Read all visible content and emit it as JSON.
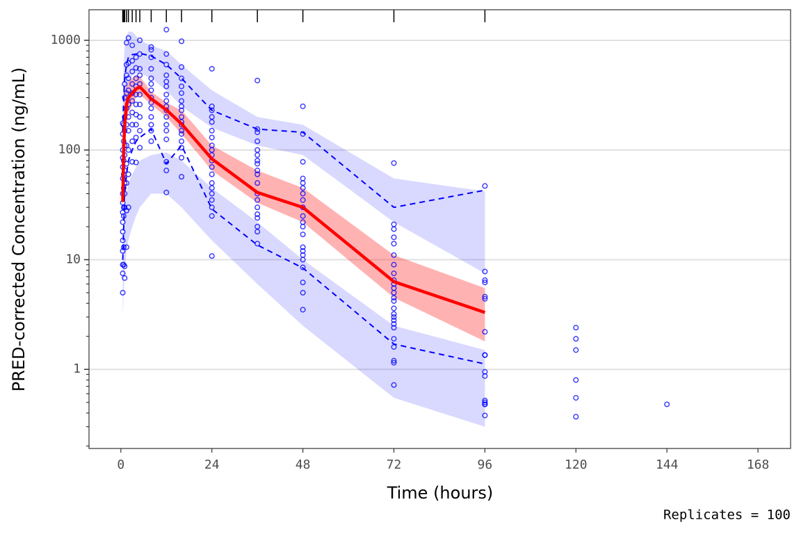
{
  "chart_data": {
    "type": "vpc",
    "x_label": "Time (hours)",
    "y_label": "PRED-corrected Concentration (ng/mL)",
    "caption": "Replicates = 100",
    "xlim": [
      -8.4,
      176.6
    ],
    "xticks": [
      0,
      24,
      48,
      72,
      96,
      120,
      144,
      168
    ],
    "ylim": [
      0.19,
      1900
    ],
    "log_y": true,
    "yticks": [
      1,
      10,
      100,
      1000
    ],
    "y_minor_ticks": [
      0.2,
      0.3,
      0.4,
      0.5,
      0.6,
      0.7,
      0.8,
      0.9,
      2,
      3,
      4,
      5,
      6,
      7,
      8,
      9,
      20,
      30,
      40,
      50,
      60,
      70,
      80,
      90,
      200,
      300,
      400,
      500,
      600,
      700,
      800,
      900
    ],
    "grid": true,
    "bin_times": [
      0.5,
      0.75,
      1,
      1.5,
      2,
      3,
      4,
      5,
      8,
      12,
      16,
      24,
      36,
      48,
      72,
      96
    ],
    "pi_upper": {
      "color": "#0000ff",
      "lower": [
        80,
        150,
        250,
        350,
        420,
        480,
        500,
        500,
        450,
        350,
        250,
        160,
        110,
        90,
        22,
        7.5
      ],
      "upper": [
        300,
        600,
        900,
        1100,
        1200,
        1200,
        1100,
        1000,
        900,
        800,
        600,
        350,
        200,
        170,
        55,
        42
      ]
    },
    "pi_lower": {
      "color": "#0000ff",
      "lower": [
        3,
        5,
        8,
        12,
        15,
        20,
        25,
        30,
        40,
        40,
        30,
        15,
        6,
        2.5,
        0.55,
        0.3
      ],
      "upper": [
        12,
        20,
        30,
        40,
        50,
        60,
        70,
        80,
        90,
        95,
        80,
        45,
        22,
        10,
        2.5,
        1.5
      ]
    },
    "pi_median": {
      "color": "#ff0000",
      "lower": [
        20,
        60,
        120,
        180,
        220,
        260,
        300,
        320,
        260,
        200,
        140,
        65,
        33,
        22,
        4.5,
        1.8
      ],
      "upper": [
        50,
        200,
        320,
        380,
        420,
        450,
        480,
        470,
        340,
        270,
        230,
        110,
        65,
        45,
        11,
        5.5
      ]
    },
    "obs_median": {
      "color": "#ff0000",
      "values": [
        33.6,
        100,
        168,
        260,
        300,
        330,
        360,
        376,
        293,
        232,
        173,
        83,
        41,
        30,
        6.3,
        3.3
      ]
    },
    "obs_lower": {
      "color": "#0000ff",
      "values": [
        10,
        20,
        40,
        60,
        80,
        100,
        120,
        130,
        155,
        75,
        110,
        29,
        13.6,
        8.4,
        1.7,
        1.12
      ]
    },
    "obs_upper": {
      "color": "#0000ff",
      "values": [
        150,
        300,
        450,
        600,
        700,
        740,
        750,
        760,
        720,
        600,
        450,
        230,
        155,
        145,
        30,
        43
      ]
    },
    "observed": {
      "color": "#0000ff",
      "groups": [
        {
          "x": 0.5,
          "values": [
            5,
            7.5,
            9,
            12,
            15,
            18,
            22,
            27,
            33,
            40,
            55,
            70,
            85,
            100,
            140,
            175
          ]
        },
        {
          "x": 0.75,
          "values": [
            9,
            13,
            25,
            30,
            45,
            60,
            80,
            120,
            170
          ]
        },
        {
          "x": 1,
          "values": [
            6.8,
            8.7,
            30,
            40,
            50,
            65,
            90,
            110,
            150,
            200,
            300,
            400
          ]
        },
        {
          "x": 1.5,
          "values": [
            13,
            28,
            50,
            75,
            110,
            170,
            240,
            330,
            480,
            600,
            950
          ]
        },
        {
          "x": 2,
          "values": [
            30,
            60,
            100,
            150,
            200,
            260,
            350,
            450,
            620,
            1050
          ]
        },
        {
          "x": 3,
          "values": [
            78,
            120,
            170,
            220,
            280,
            330,
            400,
            520,
            650,
            900
          ]
        },
        {
          "x": 4,
          "values": [
            77,
            130,
            170,
            210,
            260,
            320,
            380,
            450,
            560,
            700
          ]
        },
        {
          "x": 5,
          "values": [
            105,
            150,
            200,
            260,
            320,
            400,
            480,
            550,
            1000,
            750
          ]
        },
        {
          "x": 8,
          "values": [
            870,
            820,
            700,
            550,
            450,
            400,
            350,
            300,
            270,
            240,
            200,
            170,
            150,
            120
          ]
        },
        {
          "x": 12,
          "values": [
            1250,
            750,
            600,
            480,
            420,
            380,
            320,
            280,
            250,
            230,
            200,
            170,
            150,
            125,
            78,
            65,
            41
          ]
        },
        {
          "x": 16,
          "values": [
            980,
            570,
            450,
            380,
            330,
            280,
            250,
            230,
            200,
            180,
            170,
            150,
            140,
            120,
            105,
            85,
            57
          ]
        },
        {
          "x": 24,
          "values": [
            550,
            250,
            230,
            200,
            180,
            150,
            130,
            110,
            100,
            90,
            80,
            70,
            60,
            50,
            45,
            40,
            35,
            30,
            25,
            10.8
          ]
        },
        {
          "x": 36,
          "values": [
            430,
            155,
            145,
            120,
            100,
            90,
            80,
            75,
            65,
            60,
            50,
            40,
            35,
            30,
            26,
            24,
            20,
            18,
            14
          ]
        },
        {
          "x": 48,
          "values": [
            250,
            140,
            78,
            55,
            50,
            45,
            40,
            35,
            30,
            25,
            22,
            20,
            17,
            13,
            12,
            11,
            10,
            8.5,
            6.2,
            5,
            3.5
          ]
        },
        {
          "x": 72,
          "values": [
            76,
            21,
            19,
            16,
            14,
            11,
            9,
            7.5,
            6.5,
            6,
            5.5,
            5,
            4.5,
            4.2,
            3.6,
            3.2,
            3,
            2.8,
            2.6,
            2.4,
            1.9,
            1.6,
            1.2,
            1.15,
            0.72
          ]
        },
        {
          "x": 96,
          "values": [
            47,
            7.8,
            6.5,
            6.2,
            4.6,
            4.4,
            2.2,
            1.35,
            1.35,
            0.95,
            0.87,
            0.52,
            0.5,
            0.48,
            0.48,
            0.38
          ]
        },
        {
          "x": 120,
          "values": [
            2.4,
            1.9,
            1.5,
            0.8,
            0.55,
            0.37
          ]
        },
        {
          "x": 144,
          "values": [
            0.48
          ]
        }
      ]
    }
  }
}
